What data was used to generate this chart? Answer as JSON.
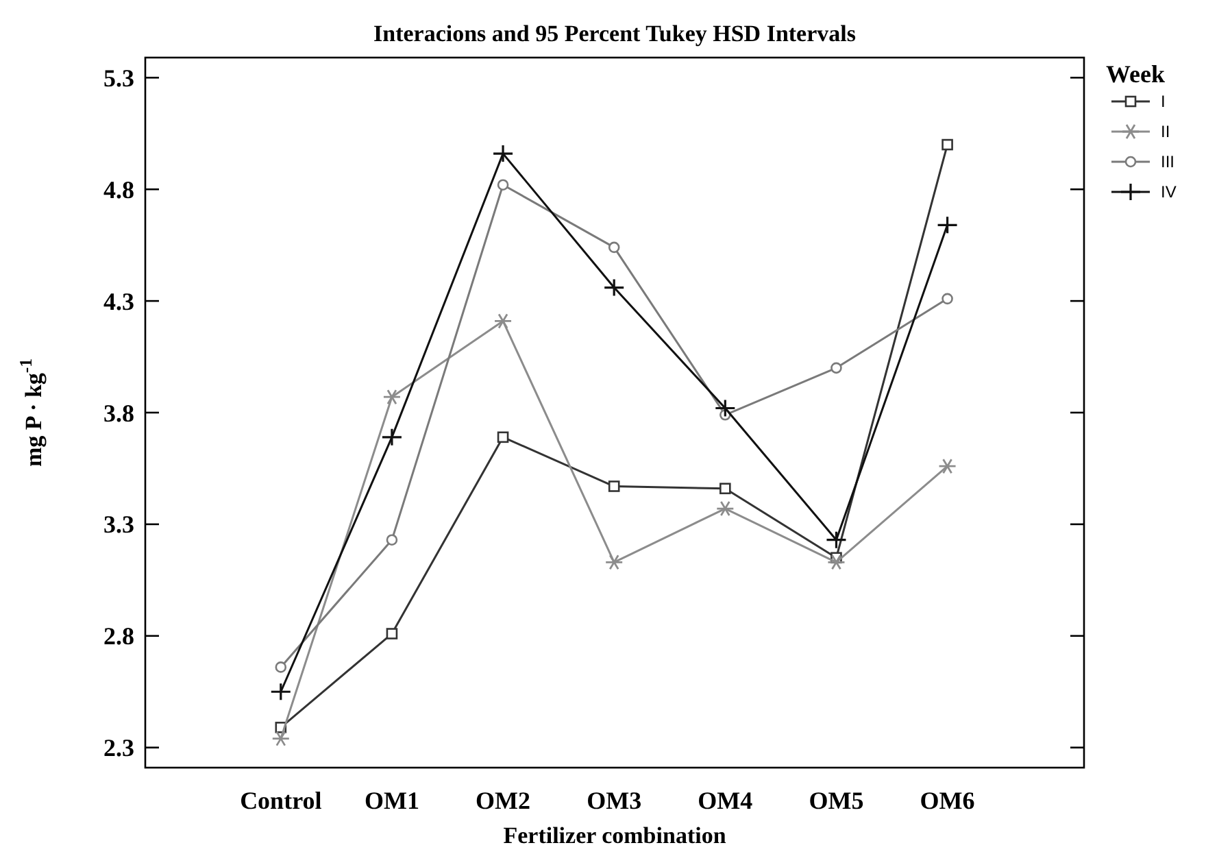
{
  "chart_data": {
    "type": "line",
    "title": "Interacions and 95 Percent Tukey HSD Intervals",
    "xlabel": "Fertilizer combination",
    "ylabel": "mg P · kg$^{-1}$",
    "legend_title": "Week",
    "categories": [
      "Control",
      "OM1",
      "OM2",
      "OM3",
      "OM4",
      "OM5",
      "OM6"
    ],
    "ylim": [
      2.21,
      5.39
    ],
    "yticks": [
      2.3,
      2.8,
      3.3,
      3.8,
      4.3,
      4.8,
      5.3
    ],
    "grid": false,
    "legend": "top right",
    "series": [
      {
        "name": "I",
        "color": "#333333",
        "marker": "square",
        "values": [
          2.39,
          2.81,
          3.69,
          3.47,
          3.46,
          3.15,
          5.0
        ]
      },
      {
        "name": "II",
        "color": "#8c8c8c",
        "marker": "cross",
        "values": [
          2.34,
          3.87,
          4.21,
          3.13,
          3.37,
          3.13,
          3.56
        ]
      },
      {
        "name": "III",
        "color": "#7a7a7a",
        "marker": "circle",
        "values": [
          2.66,
          3.23,
          4.82,
          4.54,
          3.79,
          4.0,
          4.31
        ]
      },
      {
        "name": "IV",
        "color": "#111111",
        "marker": "cross",
        "values": [
          2.55,
          3.69,
          4.96,
          4.36,
          3.82,
          3.23,
          4.64
        ]
      }
    ]
  }
}
